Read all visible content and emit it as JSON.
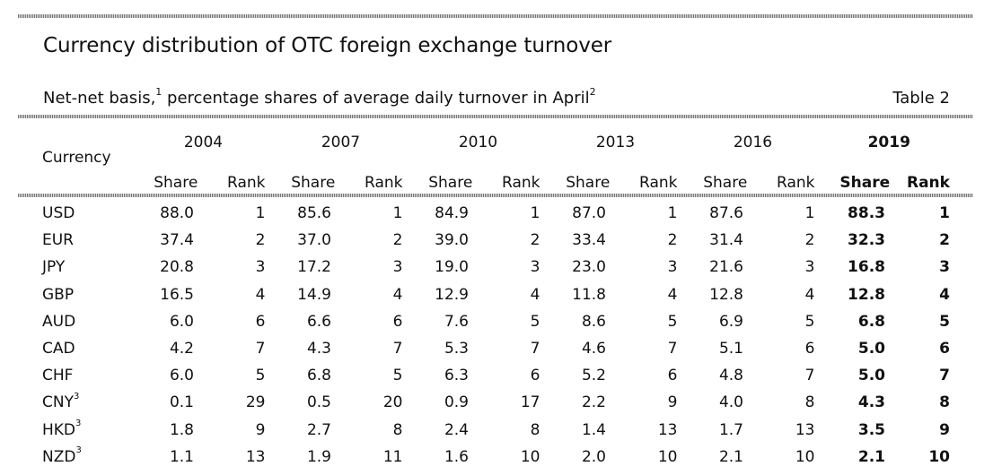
{
  "title": "Currency distribution of OTC foreign exchange turnover",
  "subtitle": {
    "text_a": "Net-net basis,",
    "fn1": "1",
    "text_b": " percentage shares of average daily turnover in April",
    "fn2": "2"
  },
  "table_label": "Table 2",
  "columns": {
    "currency": "Currency",
    "share": "Share",
    "rank": "Rank",
    "years": [
      "2004",
      "2007",
      "2010",
      "2013",
      "2016",
      "2019"
    ]
  },
  "rows": [
    {
      "currency": "USD",
      "fn": "",
      "values": [
        [
          "88.0",
          "1"
        ],
        [
          "85.6",
          "1"
        ],
        [
          "84.9",
          "1"
        ],
        [
          "87.0",
          "1"
        ],
        [
          "87.6",
          "1"
        ],
        [
          "88.3",
          "1"
        ]
      ]
    },
    {
      "currency": "EUR",
      "fn": "",
      "values": [
        [
          "37.4",
          "2"
        ],
        [
          "37.0",
          "2"
        ],
        [
          "39.0",
          "2"
        ],
        [
          "33.4",
          "2"
        ],
        [
          "31.4",
          "2"
        ],
        [
          "32.3",
          "2"
        ]
      ]
    },
    {
      "currency": "JPY",
      "fn": "",
      "values": [
        [
          "20.8",
          "3"
        ],
        [
          "17.2",
          "3"
        ],
        [
          "19.0",
          "3"
        ],
        [
          "23.0",
          "3"
        ],
        [
          "21.6",
          "3"
        ],
        [
          "16.8",
          "3"
        ]
      ]
    },
    {
      "currency": "GBP",
      "fn": "",
      "values": [
        [
          "16.5",
          "4"
        ],
        [
          "14.9",
          "4"
        ],
        [
          "12.9",
          "4"
        ],
        [
          "11.8",
          "4"
        ],
        [
          "12.8",
          "4"
        ],
        [
          "12.8",
          "4"
        ]
      ]
    },
    {
      "currency": "AUD",
      "fn": "",
      "values": [
        [
          "6.0",
          "6"
        ],
        [
          "6.6",
          "6"
        ],
        [
          "7.6",
          "5"
        ],
        [
          "8.6",
          "5"
        ],
        [
          "6.9",
          "5"
        ],
        [
          "6.8",
          "5"
        ]
      ]
    },
    {
      "currency": "CAD",
      "fn": "",
      "values": [
        [
          "4.2",
          "7"
        ],
        [
          "4.3",
          "7"
        ],
        [
          "5.3",
          "7"
        ],
        [
          "4.6",
          "7"
        ],
        [
          "5.1",
          "6"
        ],
        [
          "5.0",
          "6"
        ]
      ]
    },
    {
      "currency": "CHF",
      "fn": "",
      "values": [
        [
          "6.0",
          "5"
        ],
        [
          "6.8",
          "5"
        ],
        [
          "6.3",
          "6"
        ],
        [
          "5.2",
          "6"
        ],
        [
          "4.8",
          "7"
        ],
        [
          "5.0",
          "7"
        ]
      ]
    },
    {
      "currency": "CNY",
      "fn": "3",
      "values": [
        [
          "0.1",
          "29"
        ],
        [
          "0.5",
          "20"
        ],
        [
          "0.9",
          "17"
        ],
        [
          "2.2",
          "9"
        ],
        [
          "4.0",
          "8"
        ],
        [
          "4.3",
          "8"
        ]
      ]
    },
    {
      "currency": "HKD",
      "fn": "3",
      "values": [
        [
          "1.8",
          "9"
        ],
        [
          "2.7",
          "8"
        ],
        [
          "2.4",
          "8"
        ],
        [
          "1.4",
          "13"
        ],
        [
          "1.7",
          "13"
        ],
        [
          "3.5",
          "9"
        ]
      ]
    },
    {
      "currency": "NZD",
      "fn": "3",
      "values": [
        [
          "1.1",
          "13"
        ],
        [
          "1.9",
          "11"
        ],
        [
          "1.6",
          "10"
        ],
        [
          "2.0",
          "10"
        ],
        [
          "2.1",
          "10"
        ],
        [
          "2.1",
          "10"
        ]
      ]
    }
  ]
}
